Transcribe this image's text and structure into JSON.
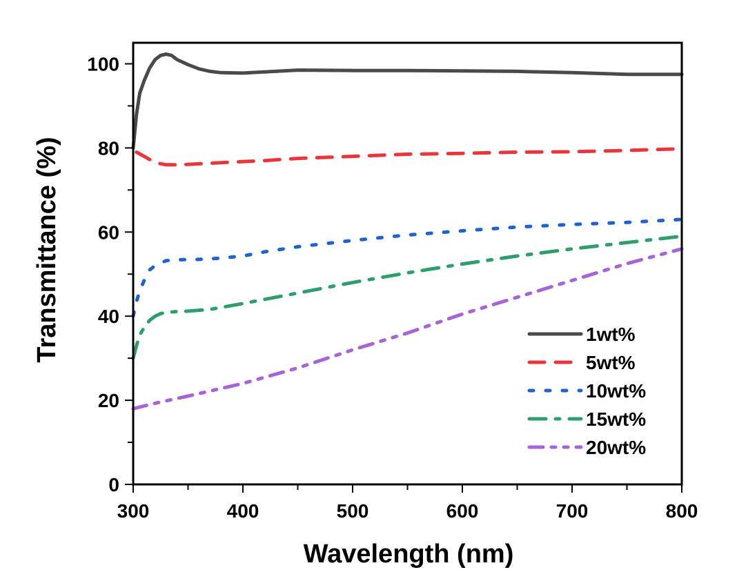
{
  "chart_data": {
    "type": "line",
    "title": "",
    "xlabel": "Wavelength (nm)",
    "ylabel": "Transmittance (%)",
    "xlim": [
      300,
      800
    ],
    "ylim": [
      0,
      105
    ],
    "xticks": [
      300,
      400,
      500,
      600,
      700,
      800
    ],
    "xtick_labels": [
      "300",
      "400",
      "500",
      "600",
      "700",
      "800"
    ],
    "yticks": [
      0,
      20,
      40,
      60,
      80,
      100
    ],
    "ytick_labels": [
      "0",
      "20",
      "40",
      "60",
      "80",
      "100"
    ],
    "grid": false,
    "legend_position": "lower-right",
    "series": [
      {
        "name": "1wt%",
        "label": "1wt%",
        "color": "#4a4a4a",
        "style": "solid",
        "x": [
          300,
          303,
          306,
          310,
          315,
          320,
          325,
          330,
          335,
          340,
          350,
          360,
          370,
          380,
          400,
          450,
          500,
          550,
          600,
          650,
          700,
          750,
          800
        ],
        "y": [
          80,
          88,
          93,
          96,
          99,
          101,
          102,
          102.3,
          102,
          101,
          99.8,
          98.8,
          98.2,
          97.9,
          97.8,
          98.5,
          98.4,
          98.4,
          98.3,
          98.2,
          97.9,
          97.5,
          97.5
        ]
      },
      {
        "name": "5wt%",
        "label": "5wt%",
        "color": "#e8363b",
        "style": "dashed",
        "x": [
          303,
          310,
          320,
          330,
          340,
          350,
          380,
          420,
          450,
          500,
          550,
          600,
          650,
          700,
          750,
          800
        ],
        "y": [
          79,
          78,
          76.5,
          76,
          76,
          76.1,
          76.5,
          77,
          77.5,
          78,
          78.5,
          78.7,
          79,
          79.1,
          79.4,
          79.8
        ]
      },
      {
        "name": "10wt%",
        "label": "10wt%",
        "color": "#1f62cf",
        "style": "dotted",
        "x": [
          300,
          303,
          306,
          310,
          315,
          320,
          330,
          340,
          360,
          380,
          400,
          420,
          450,
          500,
          550,
          600,
          650,
          700,
          750,
          800
        ],
        "y": [
          40,
          43.5,
          46,
          48.5,
          51,
          52,
          53.2,
          53.4,
          53.5,
          53.8,
          54.3,
          55.3,
          56.5,
          58,
          59.3,
          60.3,
          61.2,
          61.8,
          62.3,
          63
        ]
      },
      {
        "name": "15wt%",
        "label": "15wt%",
        "color": "#2e9e6a",
        "style": "dash-dot",
        "x": [
          300,
          303,
          306,
          310,
          315,
          320,
          325,
          330,
          340,
          350,
          370,
          400,
          450,
          500,
          550,
          600,
          650,
          700,
          750,
          800
        ],
        "y": [
          30,
          33,
          35.5,
          37.3,
          39,
          40,
          40.6,
          40.9,
          41.1,
          41.2,
          41.6,
          43,
          45.5,
          48,
          50.3,
          52.4,
          54.3,
          56,
          57.5,
          59
        ]
      },
      {
        "name": "20wt%",
        "label": "20wt%",
        "color": "#a764d6",
        "style": "dash-dot-dot",
        "x": [
          300,
          320,
          350,
          400,
          450,
          500,
          550,
          600,
          650,
          700,
          750,
          800
        ],
        "y": [
          18,
          19.3,
          21,
          24,
          27.7,
          32,
          36,
          40.5,
          44.5,
          48.5,
          52.5,
          56
        ]
      }
    ]
  }
}
